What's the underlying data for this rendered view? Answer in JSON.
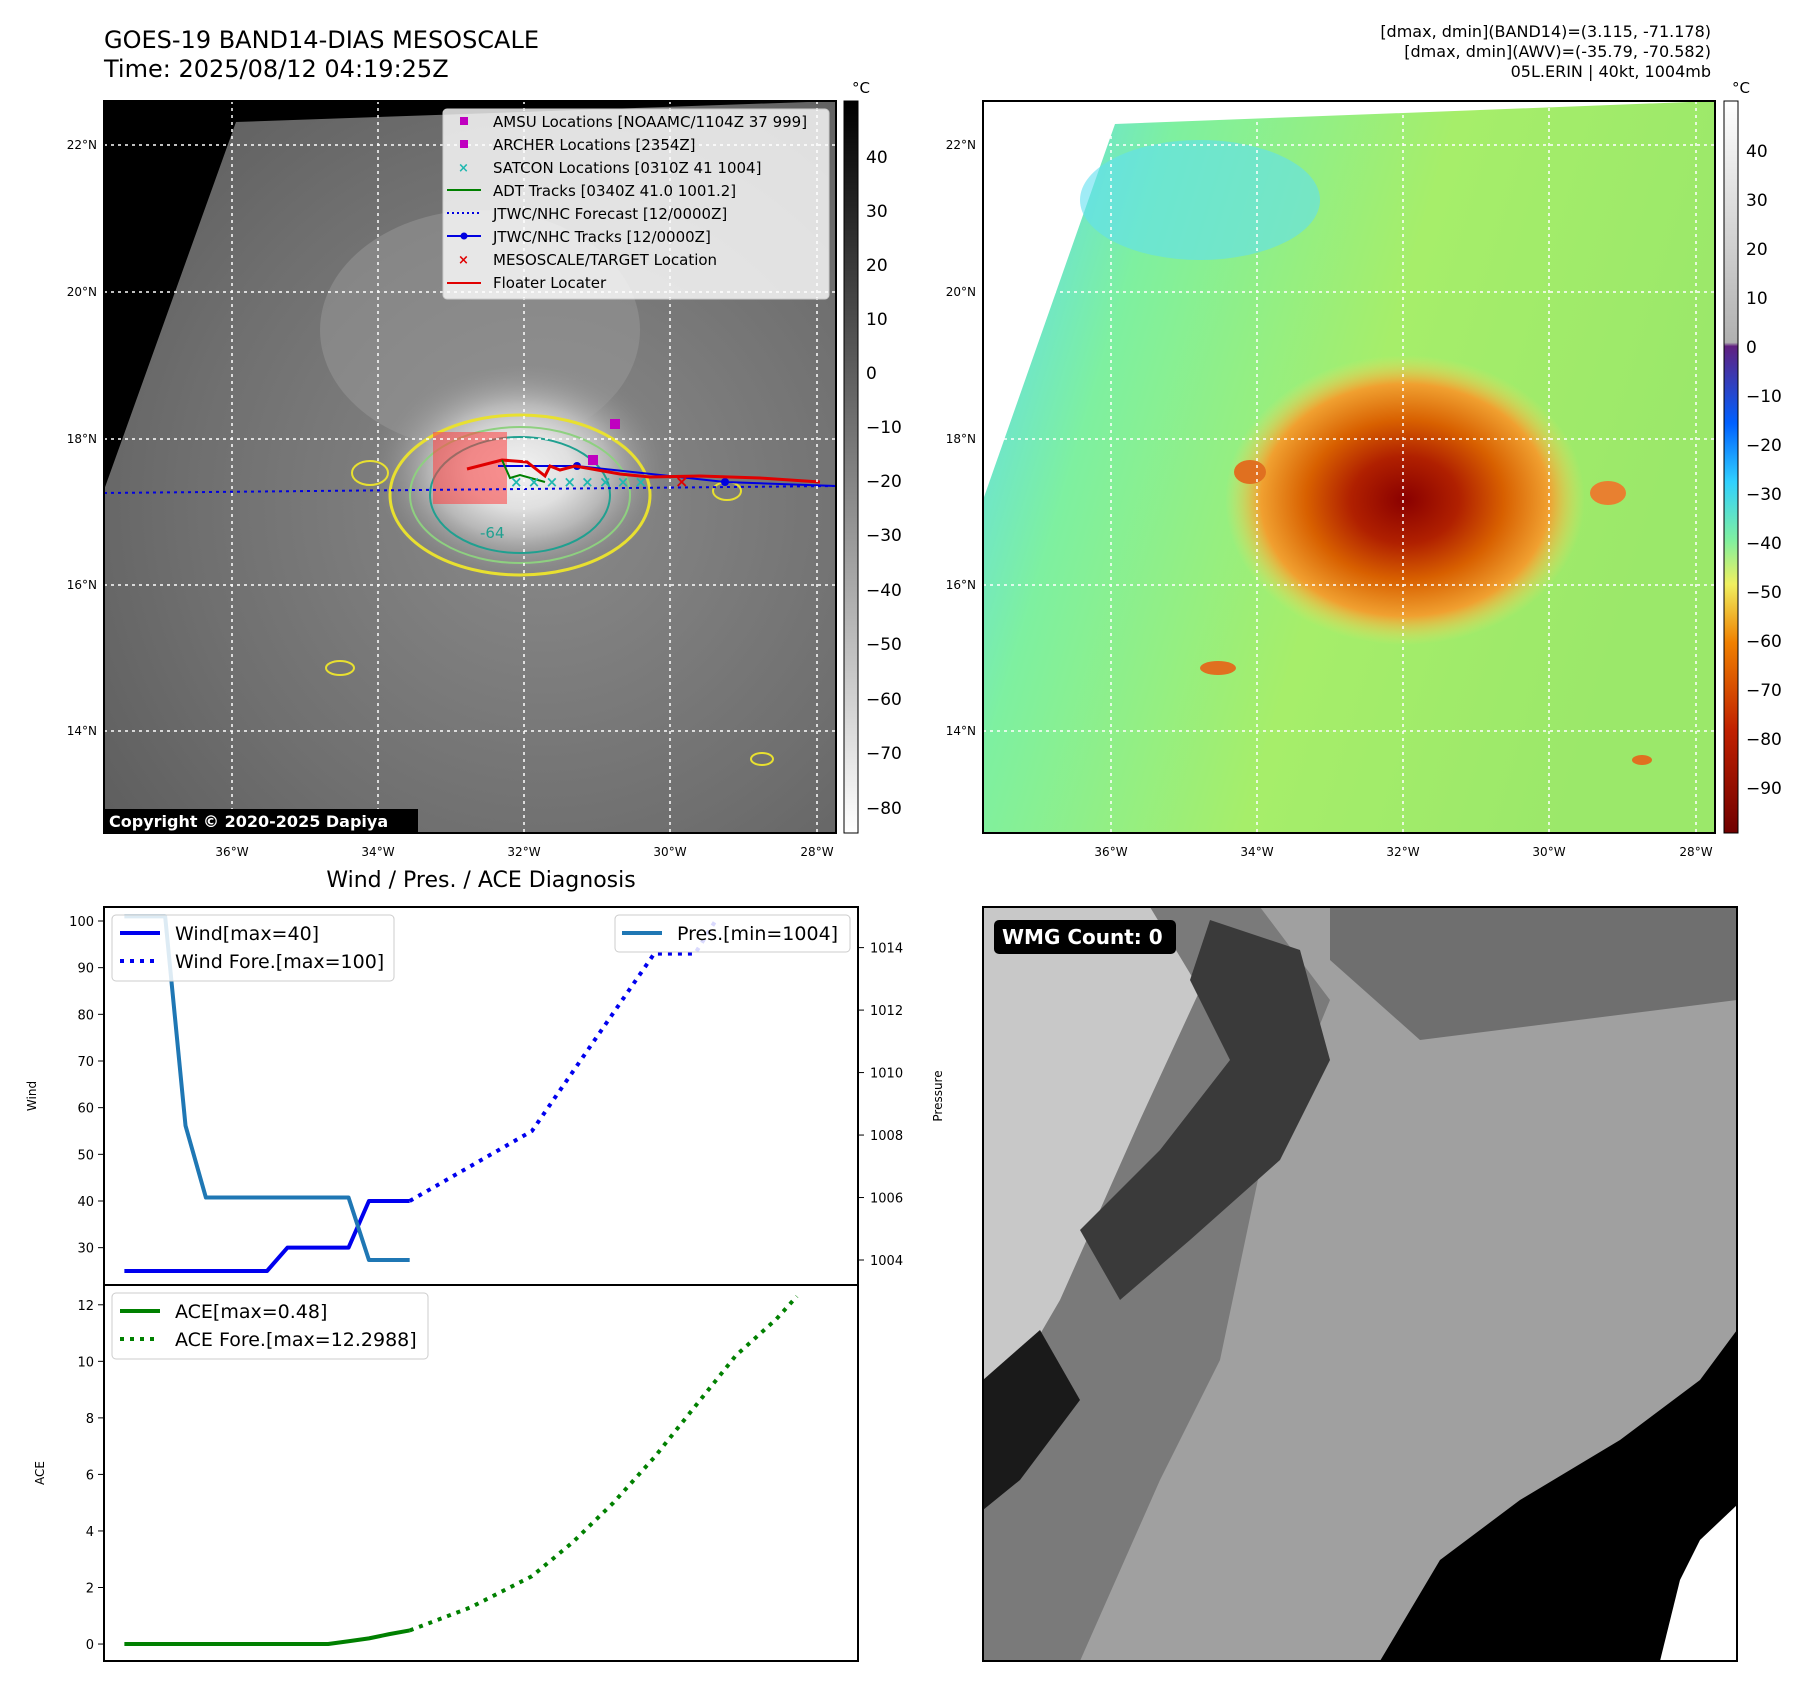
{
  "header": {
    "title_line1": "GOES-19 BAND14-DIAS MESOSCALE",
    "title_line2": "Time: 2025/08/12 04:19:25Z",
    "stat_line1": "[dmax, dmin](BAND14)=(3.115, -71.178)",
    "stat_line2": "[dmax, dmin](AWV)=(-35.79, -70.582)",
    "stat_line3": "05L.ERIN | 40kt, 1004mb"
  },
  "map": {
    "lat_labels": [
      "22°N",
      "20°N",
      "18°N",
      "16°N",
      "14°N"
    ],
    "lon_labels": [
      "36°W",
      "34°W",
      "32°W",
      "30°W",
      "28°W"
    ],
    "contour_label": "-64",
    "copyright": "Copyright © 2020-2025 Dapiya",
    "colorbar_unit": "°C",
    "gray_ticks": [
      "40",
      "30",
      "20",
      "10",
      "0",
      "−10",
      "−20",
      "−30",
      "−40",
      "−50",
      "−60",
      "−70",
      "−80"
    ],
    "color_ticks": [
      "40",
      "30",
      "20",
      "10",
      "0",
      "−10",
      "−20",
      "−30",
      "−40",
      "−50",
      "−60",
      "−70",
      "−80",
      "−90"
    ],
    "legend": [
      {
        "label": "AMSU Locations [NOAAMC/1104Z 37 999]",
        "marker": "square",
        "color": "#c000c0"
      },
      {
        "label": "ARCHER Locations [2354Z]",
        "marker": "square",
        "color": "#c000c0"
      },
      {
        "label": "SATCON Locations [0310Z 41 1004]",
        "marker": "x",
        "color": "#20b8b0"
      },
      {
        "label": "ADT Tracks [0340Z 41.0 1001.2]",
        "marker": "line",
        "color": "#008000"
      },
      {
        "label": "JTWC/NHC Forecast [12/0000Z]",
        "marker": "dotted",
        "color": "#0000e0"
      },
      {
        "label": "JTWC/NHC Tracks [12/0000Z]",
        "marker": "line-dot",
        "color": "#0000e0"
      },
      {
        "label": "MESOSCALE/TARGET Location",
        "marker": "x",
        "color": "#e00000"
      },
      {
        "label": "Floater Locater",
        "marker": "line",
        "color": "#e00000"
      }
    ]
  },
  "wmg": {
    "label": "WMG Count: 0"
  },
  "chart_data": [
    {
      "type": "line",
      "title": "Wind / Pres. / ACE Diagnosis",
      "ylabel": "Wind",
      "ylim": [
        22,
        103
      ],
      "yticks": [
        30,
        40,
        50,
        60,
        70,
        80,
        90,
        100
      ],
      "y2label": "Pressure",
      "y2lim": [
        1003.2,
        1015.3
      ],
      "y2ticks": [
        1004,
        1006,
        1008,
        1010,
        1012,
        1014
      ],
      "x_index_range": [
        -1,
        36
      ],
      "legend_left": [
        "Wind[max=40]",
        "Wind Fore.[max=100]"
      ],
      "legend_right": [
        "Pres.[min=1004]"
      ],
      "series": [
        {
          "name": "Wind",
          "axis": "left",
          "color": "#0000ee",
          "style": "solid",
          "x": [
            0,
            1,
            2,
            3,
            4,
            5,
            6,
            7,
            8,
            9,
            10,
            11,
            12,
            13,
            14
          ],
          "values": [
            25,
            25,
            25,
            25,
            25,
            25,
            25,
            25,
            30,
            30,
            30,
            30,
            40,
            40,
            40
          ]
        },
        {
          "name": "Wind Fore.",
          "axis": "left",
          "color": "#0000ee",
          "style": "dotted",
          "x": [
            14,
            20,
            26,
            28,
            29
          ],
          "values": [
            40,
            55,
            93,
            93,
            100
          ]
        },
        {
          "name": "Pres.",
          "axis": "right",
          "color": "#1f77b4",
          "style": "solid",
          "x": [
            0,
            1,
            2,
            3,
            4,
            5,
            6,
            7,
            8,
            9,
            10,
            11,
            12,
            13,
            14
          ],
          "values": [
            1015,
            1015,
            1015,
            1008.3,
            1006,
            1006,
            1006,
            1006,
            1006,
            1006,
            1006,
            1006,
            1004,
            1004,
            1004
          ]
        }
      ]
    },
    {
      "type": "line",
      "ylabel": "ACE",
      "ylim": [
        -0.6,
        12.7
      ],
      "yticks": [
        0,
        2,
        4,
        6,
        8,
        10,
        12
      ],
      "x_index_range": [
        -1,
        36
      ],
      "legend": [
        "ACE[max=0.48]",
        "ACE Fore.[max=12.2988]"
      ],
      "series": [
        {
          "name": "ACE",
          "color": "#008000",
          "style": "solid",
          "x": [
            0,
            2,
            4,
            6,
            8,
            10,
            11,
            12,
            13,
            14
          ],
          "values": [
            0,
            0,
            0,
            0,
            0,
            0,
            0.1,
            0.2,
            0.35,
            0.48
          ]
        },
        {
          "name": "ACE Fore.",
          "color": "#008000",
          "style": "dotted",
          "x": [
            14,
            17,
            20,
            22,
            24,
            26,
            28,
            30,
            32,
            33
          ],
          "values": [
            0.48,
            1.3,
            2.4,
            3.6,
            5.0,
            6.6,
            8.4,
            10.2,
            11.5,
            12.3
          ]
        }
      ]
    }
  ]
}
